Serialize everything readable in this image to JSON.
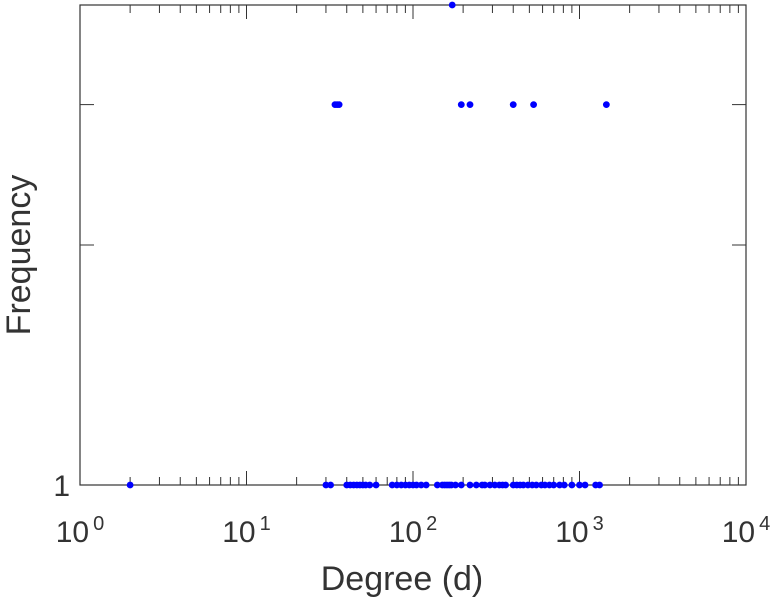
{
  "chart_data": {
    "type": "scatter",
    "xlabel": "Degree (d)",
    "ylabel": "Frequency",
    "xscale": "log",
    "yscale": "log",
    "xlim": [
      1,
      10000
    ],
    "xticks": [
      {
        "base": "10",
        "exp": "0",
        "value": 1
      },
      {
        "base": "10",
        "exp": "1",
        "value": 10
      },
      {
        "base": "10",
        "exp": "2",
        "value": 100
      },
      {
        "base": "10",
        "exp": "3",
        "value": 1000
      },
      {
        "base": "10",
        "exp": "4",
        "value": 10000
      }
    ],
    "yticks": [
      {
        "label": "1",
        "value": 1
      }
    ],
    "ylim": [
      1,
      4
    ],
    "grid": false,
    "marker_color": "#0000ff",
    "points": [
      {
        "x": 2,
        "y": 1
      },
      {
        "x": 30,
        "y": 1
      },
      {
        "x": 32,
        "y": 1
      },
      {
        "x": 40,
        "y": 1
      },
      {
        "x": 42,
        "y": 1
      },
      {
        "x": 44,
        "y": 1
      },
      {
        "x": 46,
        "y": 1
      },
      {
        "x": 48,
        "y": 1
      },
      {
        "x": 50,
        "y": 1
      },
      {
        "x": 52,
        "y": 1
      },
      {
        "x": 55,
        "y": 1
      },
      {
        "x": 60,
        "y": 1
      },
      {
        "x": 75,
        "y": 1
      },
      {
        "x": 80,
        "y": 1
      },
      {
        "x": 85,
        "y": 1
      },
      {
        "x": 90,
        "y": 1
      },
      {
        "x": 95,
        "y": 1
      },
      {
        "x": 100,
        "y": 1
      },
      {
        "x": 105,
        "y": 1
      },
      {
        "x": 112,
        "y": 1
      },
      {
        "x": 120,
        "y": 1
      },
      {
        "x": 140,
        "y": 1
      },
      {
        "x": 150,
        "y": 1
      },
      {
        "x": 155,
        "y": 1
      },
      {
        "x": 160,
        "y": 1
      },
      {
        "x": 165,
        "y": 1
      },
      {
        "x": 170,
        "y": 1
      },
      {
        "x": 180,
        "y": 1
      },
      {
        "x": 195,
        "y": 1
      },
      {
        "x": 220,
        "y": 1
      },
      {
        "x": 240,
        "y": 1
      },
      {
        "x": 260,
        "y": 1
      },
      {
        "x": 270,
        "y": 1
      },
      {
        "x": 290,
        "y": 1
      },
      {
        "x": 310,
        "y": 1
      },
      {
        "x": 330,
        "y": 1
      },
      {
        "x": 345,
        "y": 1
      },
      {
        "x": 360,
        "y": 1
      },
      {
        "x": 400,
        "y": 1
      },
      {
        "x": 420,
        "y": 1
      },
      {
        "x": 440,
        "y": 1
      },
      {
        "x": 460,
        "y": 1
      },
      {
        "x": 490,
        "y": 1
      },
      {
        "x": 520,
        "y": 1
      },
      {
        "x": 550,
        "y": 1
      },
      {
        "x": 590,
        "y": 1
      },
      {
        "x": 620,
        "y": 1
      },
      {
        "x": 660,
        "y": 1
      },
      {
        "x": 700,
        "y": 1
      },
      {
        "x": 760,
        "y": 1
      },
      {
        "x": 810,
        "y": 1
      },
      {
        "x": 900,
        "y": 1
      },
      {
        "x": 1000,
        "y": 1
      },
      {
        "x": 1080,
        "y": 1
      },
      {
        "x": 1250,
        "y": 1
      },
      {
        "x": 1320,
        "y": 1
      },
      {
        "x": 34,
        "y": 3
      },
      {
        "x": 35,
        "y": 3
      },
      {
        "x": 36,
        "y": 3
      },
      {
        "x": 195,
        "y": 3
      },
      {
        "x": 220,
        "y": 3
      },
      {
        "x": 400,
        "y": 3
      },
      {
        "x": 530,
        "y": 3
      },
      {
        "x": 1450,
        "y": 3
      },
      {
        "x": 172,
        "y": 4
      }
    ]
  }
}
